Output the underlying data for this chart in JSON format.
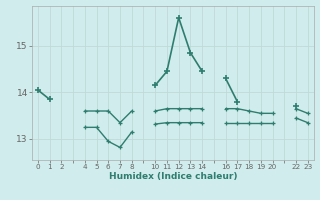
{
  "xlabel": "Humidex (Indice chaleur)",
  "background_color": "#d0ecec",
  "grid_color": "#b8d8d8",
  "line_color": "#2e7d6e",
  "all_hours": [
    0,
    1,
    2,
    3,
    4,
    5,
    6,
    7,
    8,
    9,
    10,
    11,
    12,
    13,
    14,
    15,
    16,
    17,
    18,
    19,
    20,
    21,
    22,
    23
  ],
  "max_values": [
    14.05,
    13.85,
    null,
    null,
    null,
    null,
    null,
    null,
    null,
    null,
    14.15,
    14.45,
    15.6,
    14.85,
    14.45,
    null,
    14.3,
    13.8,
    null,
    null,
    null,
    null,
    13.7,
    null
  ],
  "mean_values": [
    null,
    null,
    null,
    null,
    13.6,
    13.6,
    13.6,
    13.35,
    13.6,
    null,
    13.6,
    13.65,
    13.65,
    13.65,
    13.65,
    null,
    13.65,
    13.65,
    13.6,
    13.55,
    13.55,
    null,
    13.65,
    13.55
  ],
  "min_values": [
    null,
    null,
    null,
    null,
    13.25,
    13.25,
    12.95,
    12.82,
    13.15,
    null,
    13.32,
    13.35,
    13.35,
    13.35,
    13.35,
    null,
    13.35,
    13.35,
    13.35,
    13.35,
    13.35,
    null,
    13.45,
    13.35
  ],
  "ylim": [
    12.55,
    15.85
  ],
  "yticks": [
    13,
    14,
    15
  ],
  "tick_labels": [
    "0",
    "1",
    "2",
    "",
    "4",
    "5",
    "6",
    "7",
    "8",
    "",
    "10",
    "11",
    "12",
    "13",
    "14",
    "",
    "16",
    "17",
    "18",
    "19",
    "20",
    "",
    "22",
    "23"
  ]
}
